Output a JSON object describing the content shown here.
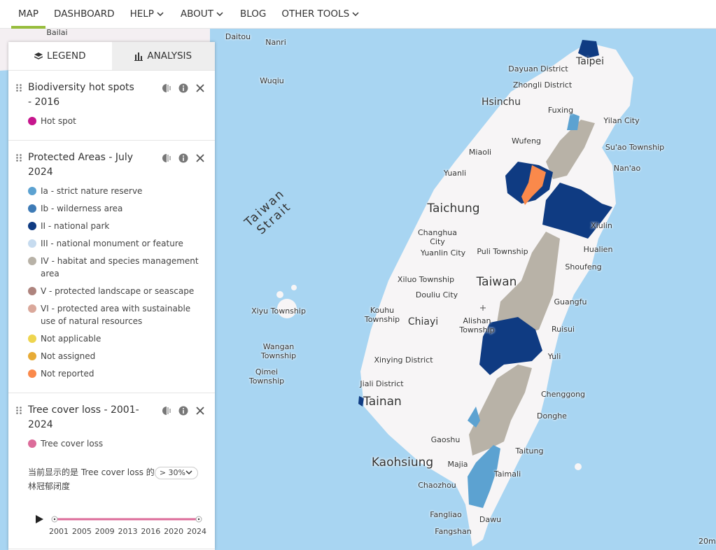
{
  "nav": {
    "items": [
      "MAP",
      "DASHBOARD",
      "HELP",
      "ABOUT",
      "BLOG",
      "OTHER TOOLS"
    ]
  },
  "panel": {
    "tabs": [
      "LEGEND",
      "ANALYSIS"
    ],
    "layers": [
      {
        "title": "Biodiversity hot spots - 2016",
        "items": [
          {
            "label": "Hot spot",
            "color": "#c6168d"
          }
        ]
      },
      {
        "title": "Protected Areas - July 2024",
        "items": [
          {
            "label": "Ia - strict nature reserve",
            "color": "#5ca2d1"
          },
          {
            "label": "Ib - wilderness area",
            "color": "#3e7bb6"
          },
          {
            "label": "II - national park",
            "color": "#0f3b82"
          },
          {
            "label": "III - national monument or feature",
            "color": "#c6dbef"
          },
          {
            "label": "IV - habitat and species management area",
            "color": "#b8b2a7"
          },
          {
            "label": "V - protected landscape or seascape",
            "color": "#ae847e"
          },
          {
            "label": "VI - protected area with sustainable use of natural resources",
            "color": "#daa89b"
          },
          {
            "label": "Not applicable",
            "color": "#eed54f"
          },
          {
            "label": "Not assigned",
            "color": "#e7ab36"
          },
          {
            "label": "Not reported",
            "color": "#fa894b"
          }
        ]
      },
      {
        "title": "Tree cover loss - 2001-2024",
        "items": [
          {
            "label": "Tree cover loss",
            "color": "#dc6c9a"
          }
        ],
        "note_prefix": "当前显示的是 Tree cover loss 的",
        "threshold": "> 30%",
        "note_suffix": "林冠郁闭度",
        "years": [
          "2001",
          "2005",
          "2009",
          "2013",
          "2016",
          "2020",
          "2024"
        ]
      }
    ]
  },
  "map": {
    "labels": [
      "Taipei",
      "Dayuan District",
      "Zhongli District",
      "Hsinchu",
      "Fuxing",
      "Yilan City",
      "Wufeng",
      "Su'ao Township",
      "Miaoli",
      "Nan'ao",
      "Yuanli",
      "Taichung",
      "Xiulin",
      "Changhua City",
      "Hualien",
      "Yuanlin City",
      "Puli Township",
      "Shoufeng",
      "Xiluo Township",
      "Taiwan",
      "Douliu City",
      "Guangfu",
      "Kouhu Township",
      "Chiayi",
      "Alishan Township",
      "Ruisui",
      "Xinying District",
      "Yuli",
      "Jiali District",
      "Chenggong",
      "Tainan",
      "Donghe",
      "Gaoshu",
      "Taitung",
      "Kaohsiung",
      "Majia",
      "Taimali",
      "Chaozhou",
      "Fangliao",
      "Dawu",
      "Fangshan",
      "Taiwan Strait",
      "Wuqiu",
      "Xiyu Township",
      "Wangan Township",
      "Qimei Township",
      "Nanri",
      "Daitou",
      "Bailai",
      "20m"
    ]
  }
}
